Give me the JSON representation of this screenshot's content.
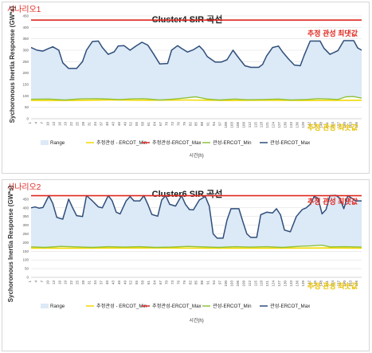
{
  "colors": {
    "range_fill": "#dce9f6",
    "estimated_max": "#e0281f",
    "estimated_min": "#f2d900",
    "min_line": "#8fc23d",
    "max_line": "#2f4e7a"
  },
  "chart_data": [
    {
      "type": "area",
      "scenario": "시나리오1",
      "title": "Cluster4 SIR 곡선",
      "xlabel": "시간(h)",
      "ylabel": "Sychoronous Inertia Response (GW*s)",
      "yticks": [
        "0",
        "50",
        "100",
        "150",
        "200",
        "250",
        "300",
        "350",
        "400",
        "450"
      ],
      "ylim": [
        0,
        450
      ],
      "xlim": [
        1,
        168
      ],
      "grid": true,
      "legend_position": "bottom",
      "legend": [
        "Range",
        "추정관성 - ERCOT_Min",
        "추정관성-ERCOT_Max",
        "관성-ERCOT_Min",
        "관성-ERCOT_Max"
      ],
      "annotations": {
        "max": "추정 관성 최댓값",
        "min": "추정 관성 최솟값"
      },
      "estimated_max": 432,
      "estimated_min": 84,
      "series": [
        {
          "name": "관성-ERCOT_Max",
          "points": [
            [
              1,
              312
            ],
            [
              4,
              300
            ],
            [
              7,
              296
            ],
            [
              10,
              308
            ],
            [
              12,
              315
            ],
            [
              15,
              300
            ],
            [
              17,
              245
            ],
            [
              20,
              220
            ],
            [
              24,
              220
            ],
            [
              27,
              250
            ],
            [
              29,
              300
            ],
            [
              32,
              338
            ],
            [
              35,
              340
            ],
            [
              37,
              312
            ],
            [
              40,
              282
            ],
            [
              43,
              293
            ],
            [
              45,
              318
            ],
            [
              48,
              320
            ],
            [
              51,
              300
            ],
            [
              54,
              318
            ],
            [
              57,
              335
            ],
            [
              60,
              322
            ],
            [
              63,
              282
            ],
            [
              66,
              240
            ],
            [
              70,
              242
            ],
            [
              72,
              300
            ],
            [
              75,
              320
            ],
            [
              77,
              308
            ],
            [
              80,
              292
            ],
            [
              83,
              302
            ],
            [
              86,
              318
            ],
            [
              88,
              300
            ],
            [
              90,
              272
            ],
            [
              94,
              248
            ],
            [
              97,
              248
            ],
            [
              100,
              258
            ],
            [
              103,
              300
            ],
            [
              106,
              265
            ],
            [
              109,
              232
            ],
            [
              112,
              225
            ],
            [
              116,
              225
            ],
            [
              118,
              238
            ],
            [
              120,
              275
            ],
            [
              123,
              312
            ],
            [
              126,
              318
            ],
            [
              128,
              293
            ],
            [
              131,
              262
            ],
            [
              134,
              235
            ],
            [
              137,
              232
            ],
            [
              139,
              278
            ],
            [
              142,
              340
            ],
            [
              147,
              340
            ],
            [
              149,
              308
            ],
            [
              152,
              282
            ],
            [
              156,
              298
            ],
            [
              159,
              342
            ],
            [
              164,
              342
            ],
            [
              166,
              310
            ],
            [
              168,
              300
            ]
          ]
        },
        {
          "name": "관성-ERCOT_Min",
          "points": [
            [
              1,
              85
            ],
            [
              10,
              86
            ],
            [
              18,
              82
            ],
            [
              26,
              87
            ],
            [
              34,
              88
            ],
            [
              40,
              86
            ],
            [
              46,
              84
            ],
            [
              52,
              87
            ],
            [
              58,
              88
            ],
            [
              66,
              82
            ],
            [
              72,
              85
            ],
            [
              78,
              90
            ],
            [
              84,
              96
            ],
            [
              90,
              86
            ],
            [
              96,
              82
            ],
            [
              104,
              86
            ],
            [
              110,
              83
            ],
            [
              118,
              84
            ],
            [
              126,
              86
            ],
            [
              132,
              82
            ],
            [
              140,
              84
            ],
            [
              146,
              88
            ],
            [
              152,
              86
            ],
            [
              156,
              84
            ],
            [
              160,
              96
            ],
            [
              164,
              97
            ],
            [
              168,
              90
            ]
          ]
        },
        {
          "name": "추정관성 - ERCOT_Min",
          "points": [
            [
              1,
              80
            ],
            [
              20,
              80
            ],
            [
              40,
              82
            ],
            [
              60,
              81
            ],
            [
              80,
              82
            ],
            [
              100,
              80
            ],
            [
              120,
              81
            ],
            [
              140,
              80
            ],
            [
              168,
              81
            ]
          ]
        }
      ]
    },
    {
      "type": "area",
      "scenario": "시나리오2",
      "title": "Cluster6 SIR 곡선",
      "xlabel": "시간(h)",
      "ylabel": "Sychoronous Inertia Response (GW*s)",
      "yticks": [
        "0",
        "50",
        "100",
        "150",
        "200",
        "250",
        "300",
        "350",
        "400",
        "450"
      ],
      "ylim": [
        0,
        500
      ],
      "xlim": [
        1,
        168
      ],
      "grid": true,
      "legend_position": "bottom",
      "legend": [
        "Range",
        "추정관성 - ERCOT_Min",
        "추정관성-ERCOT_Max",
        "관성-ERCOT_Min",
        "관성-ERCOT_Max"
      ],
      "annotations": {
        "max": "추정 관성 최댓값",
        "min": "추정 관성 최솟값"
      },
      "estimated_max": 470,
      "estimated_min": 168,
      "series": [
        {
          "name": "관성-ERCOT_Max",
          "points": [
            [
              1,
              400
            ],
            [
              3,
              405
            ],
            [
              5,
              398
            ],
            [
              7,
              402
            ],
            [
              10,
              470
            ],
            [
              12,
              425
            ],
            [
              14,
              345
            ],
            [
              17,
              335
            ],
            [
              20,
              450
            ],
            [
              22,
              400
            ],
            [
              24,
              355
            ],
            [
              27,
              350
            ],
            [
              29,
              470
            ],
            [
              32,
              440
            ],
            [
              35,
              405
            ],
            [
              37,
              400
            ],
            [
              40,
              470
            ],
            [
              42,
              440
            ],
            [
              44,
              375
            ],
            [
              46,
              365
            ],
            [
              49,
              440
            ],
            [
              51,
              465
            ],
            [
              53,
              440
            ],
            [
              56,
              440
            ],
            [
              58,
              470
            ],
            [
              60,
              420
            ],
            [
              62,
              362
            ],
            [
              65,
              352
            ],
            [
              67,
              445
            ],
            [
              69,
              470
            ],
            [
              71,
              420
            ],
            [
              74,
              410
            ],
            [
              77,
              470
            ],
            [
              79,
              420
            ],
            [
              81,
              390
            ],
            [
              83,
              388
            ],
            [
              86,
              445
            ],
            [
              89,
              465
            ],
            [
              91,
              410
            ],
            [
              93,
              250
            ],
            [
              95,
              225
            ],
            [
              98,
              225
            ],
            [
              100,
              330
            ],
            [
              102,
              395
            ],
            [
              106,
              395
            ],
            [
              108,
              320
            ],
            [
              110,
              250
            ],
            [
              112,
              230
            ],
            [
              115,
              230
            ],
            [
              117,
              360
            ],
            [
              120,
              375
            ],
            [
              123,
              370
            ],
            [
              125,
              395
            ],
            [
              127,
              360
            ],
            [
              129,
              272
            ],
            [
              132,
              262
            ],
            [
              135,
              350
            ],
            [
              138,
              390
            ],
            [
              140,
              400
            ],
            [
              142,
              420
            ],
            [
              144,
              465
            ],
            [
              146,
              455
            ],
            [
              148,
              365
            ],
            [
              150,
              390
            ],
            [
              152,
              470
            ],
            [
              155,
              472
            ],
            [
              157,
              455
            ],
            [
              159,
              395
            ],
            [
              161,
              470
            ],
            [
              163,
              455
            ],
            [
              165,
              440
            ],
            [
              168,
              440
            ]
          ]
        },
        {
          "name": "관성-ERCOT_Min",
          "points": [
            [
              1,
              175
            ],
            [
              8,
              172
            ],
            [
              16,
              178
            ],
            [
              24,
              175
            ],
            [
              32,
              172
            ],
            [
              40,
              176
            ],
            [
              48,
              174
            ],
            [
              56,
              176
            ],
            [
              64,
              172
            ],
            [
              72,
              174
            ],
            [
              80,
              178
            ],
            [
              88,
              175
            ],
            [
              96,
              172
            ],
            [
              104,
              176
            ],
            [
              112,
              174
            ],
            [
              120,
              176
            ],
            [
              128,
              172
            ],
            [
              136,
              178
            ],
            [
              144,
              182
            ],
            [
              148,
              185
            ],
            [
              152,
              175
            ],
            [
              160,
              176
            ],
            [
              168,
              174
            ]
          ]
        },
        {
          "name": "추정관성 - ERCOT_Min",
          "points": [
            [
              1,
              168
            ],
            [
              30,
              168
            ],
            [
              60,
              169
            ],
            [
              90,
              168
            ],
            [
              120,
              168
            ],
            [
              150,
              169
            ],
            [
              168,
              168
            ]
          ]
        }
      ]
    }
  ]
}
